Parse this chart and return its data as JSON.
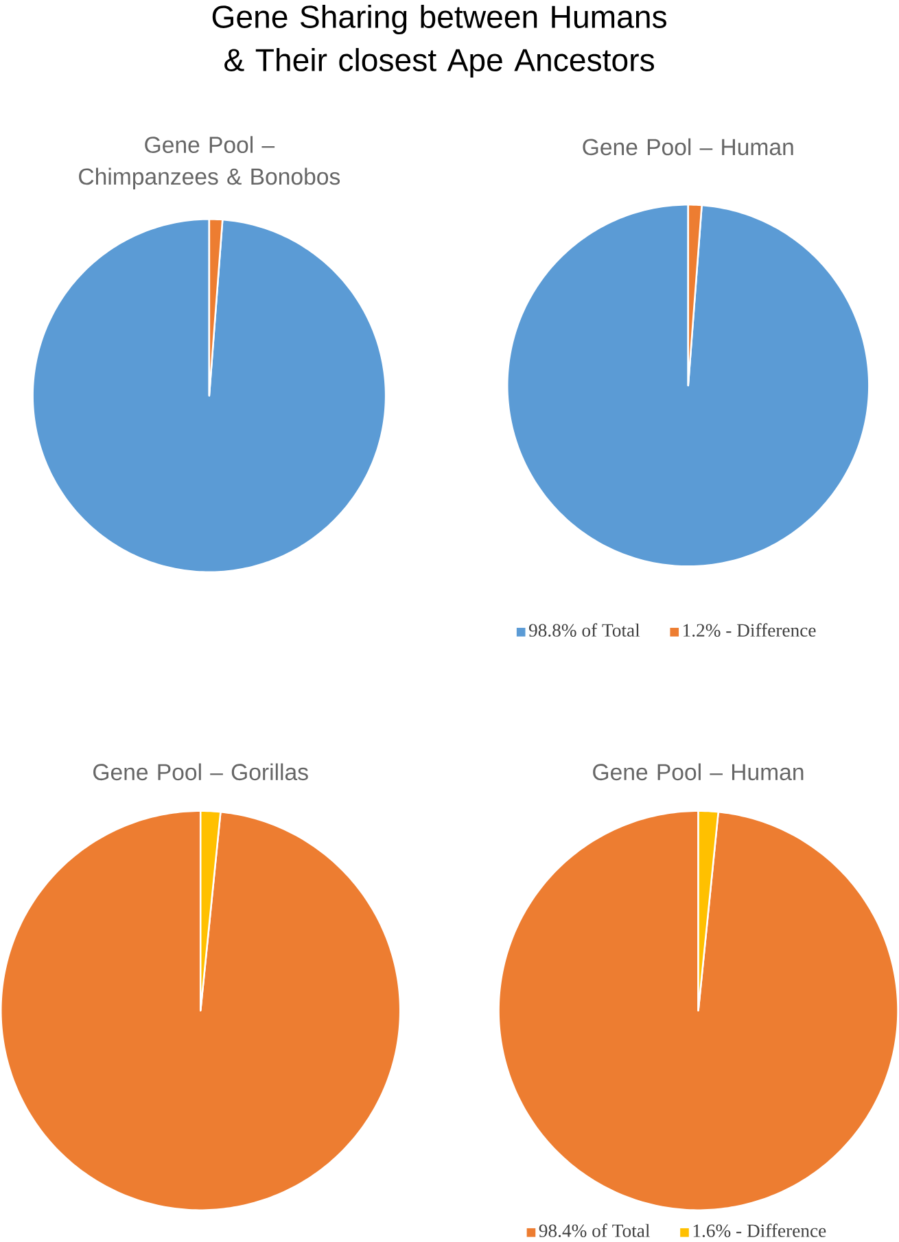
{
  "chart_data": [
    {
      "type": "pie",
      "title": "Gene Pool – Chimpanzees & Bonobos",
      "annotations": [
        "Gene Sharing between Humans & Their closest Ape Ancestors"
      ],
      "categories": [
        null,
        null
      ],
      "values": [
        98.8,
        1.2
      ],
      "colors": [
        "#5b9bd5",
        "#ed7d31"
      ],
      "legend": false
    },
    {
      "type": "pie",
      "title": "Gene Pool – Human",
      "categories": [
        "98.8% of Total",
        "1.2% - Difference"
      ],
      "values": [
        98.8,
        1.2
      ],
      "colors": [
        "#5b9bd5",
        "#ed7d31"
      ],
      "legend": "bottom"
    },
    {
      "type": "pie",
      "title": "Gene Pool – Gorillas",
      "categories": [
        null,
        null
      ],
      "values": [
        98.4,
        1.6
      ],
      "colors": [
        "#ed7d31",
        "#ffc000"
      ],
      "legend": false
    },
    {
      "type": "pie",
      "title": "Gene Pool – Human",
      "categories": [
        "98.4% of Total",
        "1.6% - Difference"
      ],
      "values": [
        98.4,
        1.6
      ],
      "colors": [
        "#ed7d31",
        "#ffc000"
      ],
      "legend": "bottom"
    }
  ]
}
